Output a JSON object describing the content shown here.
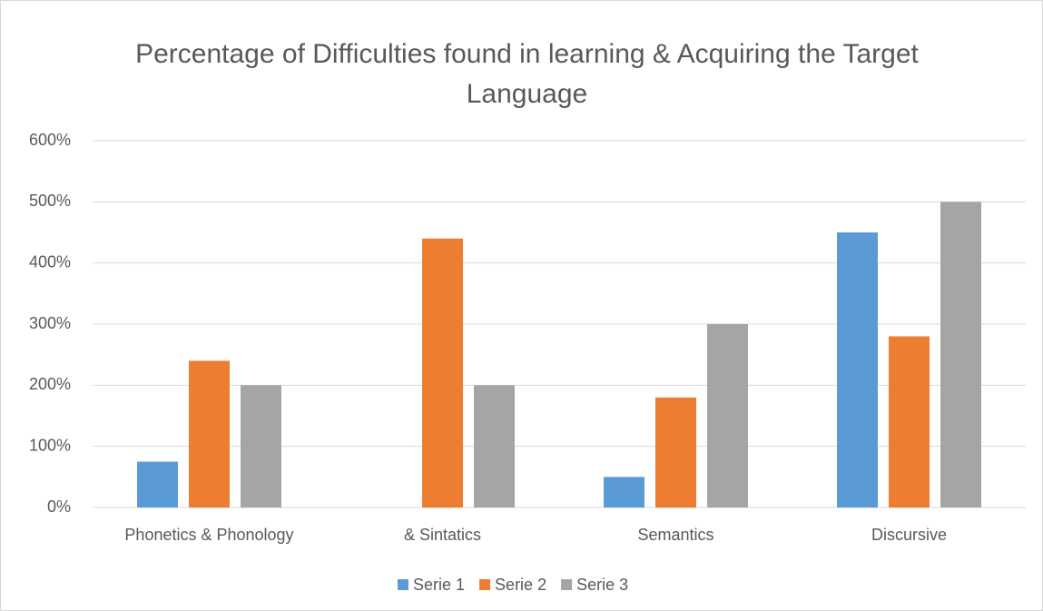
{
  "chart_data": {
    "type": "bar",
    "title": "Percentage of Difficulties found in learning & Acquiring the Target Language",
    "categories": [
      "Phonetics & Phonology",
      "& Sintatics",
      "Semantics",
      "Discursive"
    ],
    "series": [
      {
        "name": "Serie 1",
        "color": "#5b9bd5",
        "values": [
          75,
          0,
          50,
          450
        ]
      },
      {
        "name": "Serie 2",
        "color": "#ed7d31",
        "values": [
          240,
          440,
          180,
          280
        ]
      },
      {
        "name": "Serie 3",
        "color": "#a5a5a5",
        "values": [
          200,
          200,
          300,
          500
        ]
      }
    ],
    "ylim": [
      0,
      600
    ],
    "yticks": [
      {
        "value": 0,
        "label": "0%"
      },
      {
        "value": 100,
        "label": "100%"
      },
      {
        "value": 200,
        "label": "200%"
      },
      {
        "value": 300,
        "label": "300%"
      },
      {
        "value": 400,
        "label": "400%"
      },
      {
        "value": 500,
        "label": "500%"
      },
      {
        "value": 600,
        "label": "600%"
      }
    ],
    "grid": true,
    "legend": "bottom"
  }
}
